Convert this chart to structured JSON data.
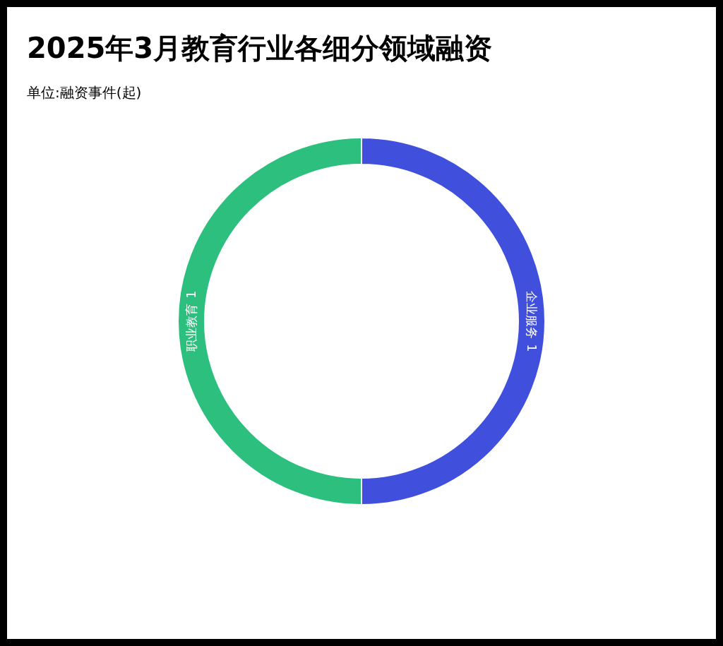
{
  "chart_data": {
    "type": "donut",
    "title": "2025年3月教育行业各细分领域融资",
    "subtitle": "单位:融资事件(起)",
    "categories": [
      "企业服务",
      "职业教育"
    ],
    "values": [
      1,
      1
    ],
    "colors": [
      "#4150dc",
      "#2cbf7e"
    ],
    "data_labels": true
  }
}
